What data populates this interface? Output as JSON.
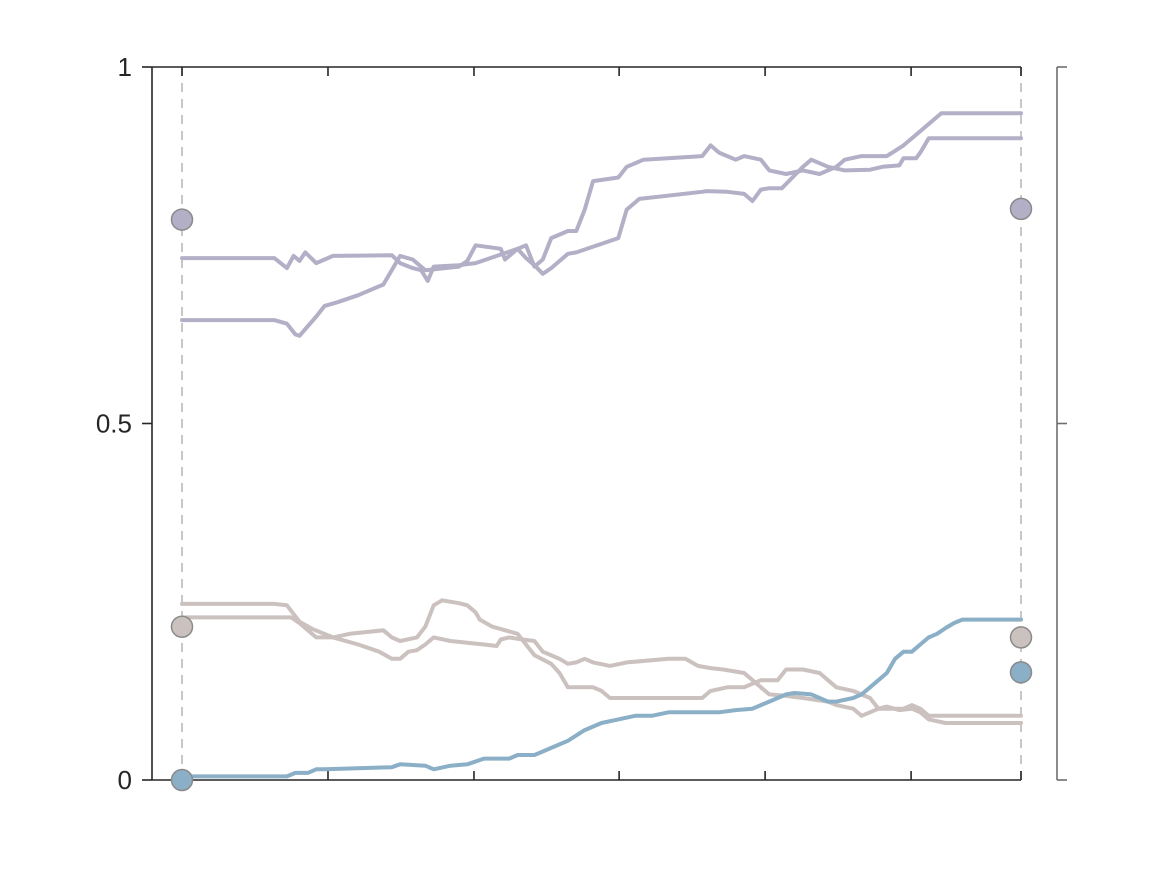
{
  "chart_data": {
    "type": "line",
    "title": "",
    "xlabel": "",
    "ylabel": "",
    "xlim": [
      0,
      1
    ],
    "ylim": [
      0,
      1
    ],
    "yticks": [
      0,
      0.5,
      1
    ],
    "ytick_labels": [
      "0",
      "0.5",
      "1"
    ],
    "xticks": [
      0,
      0.174,
      0.348,
      0.521,
      0.695,
      0.869,
      1
    ],
    "grid": false,
    "colors": {
      "purple": "#b3afc7",
      "beige": "#cbc1bf",
      "blue": "#8aafc7",
      "guide": "#c8c8c8",
      "axis": "#262626"
    },
    "series": [
      {
        "color": "purple",
        "points": [
          [
            0,
            0.732
          ],
          [
            0.11,
            0.732
          ],
          [
            0.125,
            0.718
          ],
          [
            0.133,
            0.735
          ],
          [
            0.14,
            0.728
          ],
          [
            0.147,
            0.74
          ],
          [
            0.16,
            0.725
          ],
          [
            0.18,
            0.735
          ],
          [
            0.25,
            0.736
          ],
          [
            0.26,
            0.725
          ],
          [
            0.275,
            0.718
          ],
          [
            0.285,
            0.715
          ],
          [
            0.293,
            0.7
          ],
          [
            0.3,
            0.72
          ],
          [
            0.33,
            0.722
          ],
          [
            0.35,
            0.725
          ],
          [
            0.4,
            0.745
          ],
          [
            0.41,
            0.732
          ],
          [
            0.42,
            0.722
          ],
          [
            0.43,
            0.71
          ],
          [
            0.44,
            0.718
          ],
          [
            0.46,
            0.738
          ],
          [
            0.47,
            0.74
          ],
          [
            0.52,
            0.76
          ],
          [
            0.53,
            0.8
          ],
          [
            0.545,
            0.815
          ],
          [
            0.62,
            0.825
          ],
          [
            0.625,
            0.826
          ],
          [
            0.65,
            0.825
          ],
          [
            0.67,
            0.822
          ],
          [
            0.68,
            0.812
          ],
          [
            0.69,
            0.828
          ],
          [
            0.7,
            0.83
          ],
          [
            0.715,
            0.83
          ],
          [
            0.73,
            0.848
          ],
          [
            0.74,
            0.86
          ],
          [
            0.75,
            0.87
          ],
          [
            0.77,
            0.86
          ],
          [
            0.79,
            0.855
          ],
          [
            0.82,
            0.856
          ],
          [
            0.835,
            0.86
          ],
          [
            0.855,
            0.862
          ],
          [
            0.86,
            0.872
          ],
          [
            0.875,
            0.872
          ],
          [
            0.88,
            0.88
          ],
          [
            0.89,
            0.9
          ],
          [
            1,
            0.9
          ]
        ]
      },
      {
        "color": "purple",
        "points": [
          [
            0,
            0.645
          ],
          [
            0.11,
            0.645
          ],
          [
            0.125,
            0.64
          ],
          [
            0.135,
            0.625
          ],
          [
            0.14,
            0.623
          ],
          [
            0.16,
            0.65
          ],
          [
            0.17,
            0.665
          ],
          [
            0.185,
            0.67
          ],
          [
            0.21,
            0.68
          ],
          [
            0.24,
            0.695
          ],
          [
            0.26,
            0.735
          ],
          [
            0.275,
            0.73
          ],
          [
            0.29,
            0.715
          ],
          [
            0.33,
            0.72
          ],
          [
            0.34,
            0.728
          ],
          [
            0.35,
            0.75
          ],
          [
            0.38,
            0.745
          ],
          [
            0.385,
            0.73
          ],
          [
            0.4,
            0.745
          ],
          [
            0.41,
            0.75
          ],
          [
            0.42,
            0.72
          ],
          [
            0.43,
            0.73
          ],
          [
            0.44,
            0.76
          ],
          [
            0.46,
            0.77
          ],
          [
            0.47,
            0.77
          ],
          [
            0.48,
            0.8
          ],
          [
            0.49,
            0.84
          ],
          [
            0.52,
            0.845
          ],
          [
            0.53,
            0.86
          ],
          [
            0.55,
            0.87
          ],
          [
            0.62,
            0.875
          ],
          [
            0.63,
            0.89
          ],
          [
            0.64,
            0.88
          ],
          [
            0.66,
            0.87
          ],
          [
            0.67,
            0.875
          ],
          [
            0.69,
            0.87
          ],
          [
            0.7,
            0.855
          ],
          [
            0.72,
            0.85
          ],
          [
            0.74,
            0.855
          ],
          [
            0.76,
            0.85
          ],
          [
            0.78,
            0.86
          ],
          [
            0.79,
            0.87
          ],
          [
            0.81,
            0.875
          ],
          [
            0.84,
            0.875
          ],
          [
            0.86,
            0.89
          ],
          [
            0.9,
            0.93
          ],
          [
            0.905,
            0.935
          ],
          [
            1,
            0.935
          ]
        ]
      },
      {
        "color": "beige",
        "points": [
          [
            0,
            0.247
          ],
          [
            0.11,
            0.247
          ],
          [
            0.125,
            0.245
          ],
          [
            0.14,
            0.222
          ],
          [
            0.155,
            0.212
          ],
          [
            0.18,
            0.2
          ],
          [
            0.21,
            0.19
          ],
          [
            0.235,
            0.18
          ],
          [
            0.25,
            0.17
          ],
          [
            0.26,
            0.17
          ],
          [
            0.27,
            0.18
          ],
          [
            0.28,
            0.182
          ],
          [
            0.29,
            0.19
          ],
          [
            0.3,
            0.2
          ],
          [
            0.32,
            0.195
          ],
          [
            0.36,
            0.19
          ],
          [
            0.375,
            0.188
          ],
          [
            0.38,
            0.197
          ],
          [
            0.39,
            0.2
          ],
          [
            0.4,
            0.198
          ],
          [
            0.42,
            0.195
          ],
          [
            0.43,
            0.18
          ],
          [
            0.45,
            0.17
          ],
          [
            0.46,
            0.163
          ],
          [
            0.47,
            0.165
          ],
          [
            0.48,
            0.17
          ],
          [
            0.49,
            0.165
          ],
          [
            0.51,
            0.16
          ],
          [
            0.53,
            0.165
          ],
          [
            0.58,
            0.17
          ],
          [
            0.6,
            0.17
          ],
          [
            0.615,
            0.16
          ],
          [
            0.63,
            0.157
          ],
          [
            0.645,
            0.155
          ],
          [
            0.67,
            0.15
          ],
          [
            0.69,
            0.13
          ],
          [
            0.7,
            0.12
          ],
          [
            0.72,
            0.118
          ],
          [
            0.74,
            0.115
          ],
          [
            0.77,
            0.11
          ],
          [
            0.78,
            0.105
          ],
          [
            0.8,
            0.1
          ],
          [
            0.81,
            0.09
          ],
          [
            0.82,
            0.095
          ],
          [
            0.83,
            0.1
          ],
          [
            0.84,
            0.103
          ],
          [
            0.855,
            0.098
          ],
          [
            0.87,
            0.1
          ],
          [
            0.88,
            0.095
          ],
          [
            0.89,
            0.085
          ],
          [
            0.91,
            0.08
          ],
          [
            1,
            0.08
          ]
        ]
      },
      {
        "color": "beige",
        "points": [
          [
            0,
            0.228
          ],
          [
            0.13,
            0.228
          ],
          [
            0.14,
            0.22
          ],
          [
            0.16,
            0.2
          ],
          [
            0.18,
            0.2
          ],
          [
            0.2,
            0.205
          ],
          [
            0.24,
            0.21
          ],
          [
            0.25,
            0.2
          ],
          [
            0.26,
            0.195
          ],
          [
            0.28,
            0.2
          ],
          [
            0.29,
            0.215
          ],
          [
            0.3,
            0.245
          ],
          [
            0.31,
            0.252
          ],
          [
            0.33,
            0.248
          ],
          [
            0.34,
            0.245
          ],
          [
            0.35,
            0.235
          ],
          [
            0.355,
            0.225
          ],
          [
            0.37,
            0.215
          ],
          [
            0.4,
            0.205
          ],
          [
            0.41,
            0.19
          ],
          [
            0.42,
            0.175
          ],
          [
            0.44,
            0.163
          ],
          [
            0.45,
            0.15
          ],
          [
            0.46,
            0.13
          ],
          [
            0.49,
            0.13
          ],
          [
            0.5,
            0.125
          ],
          [
            0.51,
            0.115
          ],
          [
            0.62,
            0.115
          ],
          [
            0.63,
            0.125
          ],
          [
            0.65,
            0.13
          ],
          [
            0.67,
            0.13
          ],
          [
            0.68,
            0.135
          ],
          [
            0.69,
            0.14
          ],
          [
            0.7,
            0.14
          ],
          [
            0.71,
            0.14
          ],
          [
            0.72,
            0.155
          ],
          [
            0.74,
            0.155
          ],
          [
            0.76,
            0.15
          ],
          [
            0.77,
            0.14
          ],
          [
            0.78,
            0.13
          ],
          [
            0.8,
            0.125
          ],
          [
            0.82,
            0.115
          ],
          [
            0.83,
            0.1
          ],
          [
            0.845,
            0.1
          ],
          [
            0.86,
            0.1
          ],
          [
            0.87,
            0.105
          ],
          [
            0.88,
            0.1
          ],
          [
            0.89,
            0.09
          ],
          [
            0.9,
            0.09
          ],
          [
            1,
            0.09
          ]
        ]
      },
      {
        "color": "blue",
        "points": [
          [
            0,
            0.005
          ],
          [
            0.125,
            0.005
          ],
          [
            0.135,
            0.01
          ],
          [
            0.15,
            0.01
          ],
          [
            0.16,
            0.015
          ],
          [
            0.17,
            0.015
          ],
          [
            0.25,
            0.018
          ],
          [
            0.26,
            0.022
          ],
          [
            0.29,
            0.02
          ],
          [
            0.3,
            0.015
          ],
          [
            0.32,
            0.02
          ],
          [
            0.34,
            0.022
          ],
          [
            0.36,
            0.03
          ],
          [
            0.39,
            0.03
          ],
          [
            0.4,
            0.035
          ],
          [
            0.42,
            0.035
          ],
          [
            0.43,
            0.04
          ],
          [
            0.44,
            0.045
          ],
          [
            0.45,
            0.05
          ],
          [
            0.46,
            0.055
          ],
          [
            0.48,
            0.07
          ],
          [
            0.5,
            0.08
          ],
          [
            0.52,
            0.085
          ],
          [
            0.54,
            0.09
          ],
          [
            0.56,
            0.09
          ],
          [
            0.58,
            0.095
          ],
          [
            0.62,
            0.095
          ],
          [
            0.64,
            0.095
          ],
          [
            0.66,
            0.098
          ],
          [
            0.68,
            0.1
          ],
          [
            0.69,
            0.105
          ],
          [
            0.7,
            0.11
          ],
          [
            0.71,
            0.115
          ],
          [
            0.72,
            0.12
          ],
          [
            0.73,
            0.122
          ],
          [
            0.75,
            0.12
          ],
          [
            0.76,
            0.115
          ],
          [
            0.77,
            0.11
          ],
          [
            0.78,
            0.11
          ],
          [
            0.8,
            0.115
          ],
          [
            0.81,
            0.12
          ],
          [
            0.82,
            0.13
          ],
          [
            0.83,
            0.14
          ],
          [
            0.84,
            0.15
          ],
          [
            0.85,
            0.17
          ],
          [
            0.86,
            0.18
          ],
          [
            0.87,
            0.18
          ],
          [
            0.88,
            0.19
          ],
          [
            0.89,
            0.2
          ],
          [
            0.9,
            0.205
          ],
          [
            0.91,
            0.213
          ],
          [
            0.92,
            0.22
          ],
          [
            0.93,
            0.225
          ],
          [
            1,
            0.225
          ]
        ]
      }
    ],
    "markers": [
      {
        "x": 0,
        "y": 0.786,
        "color": "purple"
      },
      {
        "x": 0,
        "y": 0.215,
        "color": "beige"
      },
      {
        "x": 0,
        "y": 0.0,
        "color": "blue"
      },
      {
        "x": 1,
        "y": 0.801,
        "color": "purple"
      },
      {
        "x": 1,
        "y": 0.2,
        "color": "beige"
      },
      {
        "x": 1,
        "y": 0.151,
        "color": "blue"
      }
    ]
  }
}
